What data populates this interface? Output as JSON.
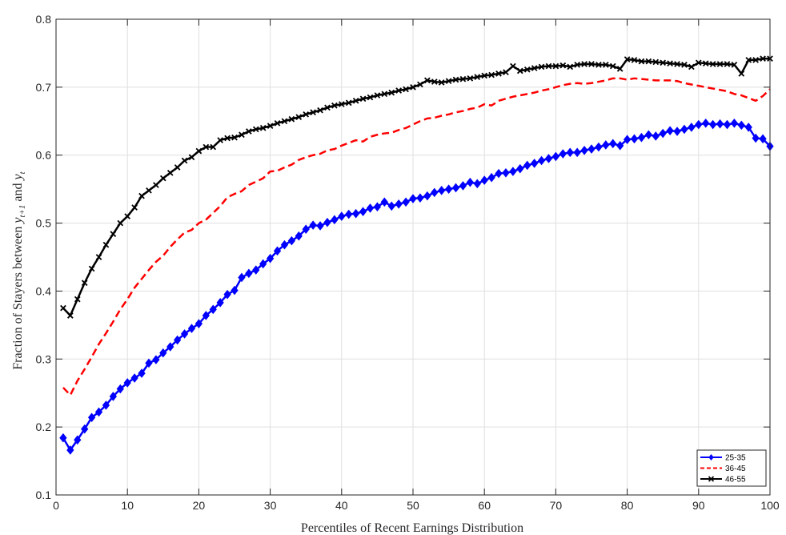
{
  "chart_data": {
    "type": "line",
    "xlabel": "Percentiles of Recent Earnings Distribution",
    "ylabel_prefix": "Fraction of Stayers between ",
    "ylabel_var1": "y",
    "ylabel_sub1": "t+1",
    "ylabel_mid": " and ",
    "ylabel_var2": "y",
    "ylabel_sub2": "t",
    "xlim": [
      0,
      100
    ],
    "ylim": [
      0.1,
      0.8
    ],
    "xticks": [
      0,
      10,
      20,
      30,
      40,
      50,
      60,
      70,
      80,
      90,
      100
    ],
    "yticks": [
      0.1,
      0.2,
      0.3,
      0.4,
      0.5,
      0.6,
      0.7,
      0.8
    ],
    "grid": true,
    "legend_position": "bottom-right",
    "series": [
      {
        "name": "25-35",
        "color": "#0000ff",
        "line_style": "solid",
        "marker": "diamond",
        "values": [
          0.184,
          0.166,
          0.181,
          0.197,
          0.214,
          0.222,
          0.232,
          0.245,
          0.256,
          0.265,
          0.272,
          0.279,
          0.294,
          0.299,
          0.309,
          0.318,
          0.328,
          0.337,
          0.345,
          0.352,
          0.364,
          0.373,
          0.383,
          0.395,
          0.401,
          0.42,
          0.426,
          0.431,
          0.44,
          0.448,
          0.459,
          0.468,
          0.474,
          0.481,
          0.491,
          0.497,
          0.496,
          0.501,
          0.505,
          0.51,
          0.513,
          0.514,
          0.517,
          0.522,
          0.524,
          0.531,
          0.525,
          0.528,
          0.531,
          0.536,
          0.537,
          0.54,
          0.545,
          0.548,
          0.55,
          0.552,
          0.555,
          0.56,
          0.558,
          0.563,
          0.567,
          0.573,
          0.574,
          0.576,
          0.58,
          0.585,
          0.588,
          0.592,
          0.595,
          0.598,
          0.602,
          0.604,
          0.604,
          0.607,
          0.609,
          0.612,
          0.615,
          0.617,
          0.614,
          0.623,
          0.624,
          0.626,
          0.63,
          0.628,
          0.632,
          0.636,
          0.635,
          0.638,
          0.641,
          0.645,
          0.647,
          0.645,
          0.646,
          0.645,
          0.647,
          0.644,
          0.641,
          0.625,
          0.624,
          0.613
        ]
      },
      {
        "name": "36-45",
        "color": "#ff0000",
        "line_style": "dashed",
        "marker": "none",
        "values": [
          0.258,
          0.247,
          0.268,
          0.285,
          0.303,
          0.322,
          0.338,
          0.355,
          0.373,
          0.388,
          0.405,
          0.418,
          0.431,
          0.443,
          0.452,
          0.465,
          0.476,
          0.486,
          0.49,
          0.5,
          0.505,
          0.515,
          0.525,
          0.538,
          0.543,
          0.547,
          0.556,
          0.561,
          0.566,
          0.576,
          0.577,
          0.582,
          0.586,
          0.593,
          0.597,
          0.6,
          0.602,
          0.607,
          0.609,
          0.614,
          0.618,
          0.622,
          0.62,
          0.627,
          0.63,
          0.632,
          0.633,
          0.637,
          0.64,
          0.645,
          0.65,
          0.654,
          0.655,
          0.658,
          0.66,
          0.663,
          0.665,
          0.668,
          0.67,
          0.675,
          0.673,
          0.68,
          0.683,
          0.686,
          0.688,
          0.69,
          0.692,
          0.695,
          0.697,
          0.7,
          0.703,
          0.705,
          0.706,
          0.705,
          0.706,
          0.708,
          0.71,
          0.713,
          0.713,
          0.711,
          0.713,
          0.712,
          0.711,
          0.71,
          0.71,
          0.71,
          0.709,
          0.706,
          0.704,
          0.702,
          0.7,
          0.698,
          0.696,
          0.694,
          0.69,
          0.688,
          0.684,
          0.68,
          0.687,
          0.697
        ]
      },
      {
        "name": "46-55",
        "color": "#000000",
        "line_style": "solid",
        "marker": "x",
        "values": [
          0.375,
          0.364,
          0.388,
          0.412,
          0.433,
          0.45,
          0.468,
          0.484,
          0.5,
          0.51,
          0.523,
          0.54,
          0.548,
          0.556,
          0.566,
          0.574,
          0.582,
          0.592,
          0.597,
          0.606,
          0.612,
          0.612,
          0.622,
          0.625,
          0.626,
          0.63,
          0.635,
          0.638,
          0.64,
          0.643,
          0.647,
          0.65,
          0.653,
          0.656,
          0.66,
          0.663,
          0.666,
          0.67,
          0.673,
          0.675,
          0.677,
          0.68,
          0.683,
          0.685,
          0.688,
          0.69,
          0.692,
          0.695,
          0.697,
          0.7,
          0.704,
          0.71,
          0.708,
          0.707,
          0.709,
          0.711,
          0.712,
          0.713,
          0.715,
          0.717,
          0.718,
          0.72,
          0.722,
          0.731,
          0.724,
          0.726,
          0.728,
          0.73,
          0.731,
          0.731,
          0.732,
          0.73,
          0.733,
          0.734,
          0.734,
          0.733,
          0.733,
          0.731,
          0.727,
          0.741,
          0.74,
          0.738,
          0.738,
          0.737,
          0.736,
          0.735,
          0.734,
          0.733,
          0.73,
          0.736,
          0.735,
          0.734,
          0.734,
          0.734,
          0.733,
          0.72,
          0.74,
          0.74,
          0.742,
          0.742
        ]
      }
    ]
  }
}
